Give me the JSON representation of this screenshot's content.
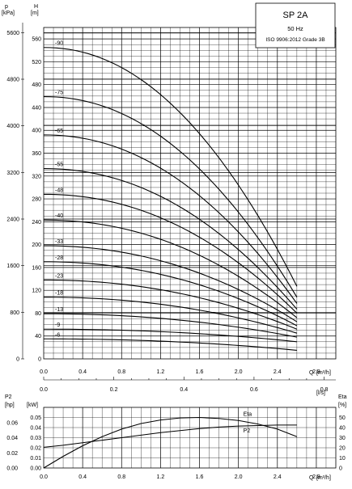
{
  "legend_box": {
    "title": "SP 2A",
    "line1": "50 Hz",
    "line2": "ISO 9906:2012 Grade 3B"
  },
  "chart_data": [
    {
      "type": "line",
      "chart": "head-curves",
      "xlabel": "Q",
      "xunit": "[m³/h]",
      "xlim": [
        0,
        3.0
      ],
      "xticks": [
        "0.0",
        "0.4",
        "0.8",
        "1.2",
        "1.6",
        "2.0",
        "2.4",
        "2.8"
      ],
      "xtick_values": [
        0.0,
        0.4,
        0.8,
        1.2,
        1.6,
        2.0,
        2.4,
        2.8
      ],
      "ylabel": "H",
      "yunit": "[m]",
      "ylim": [
        0,
        580
      ],
      "yticks": [
        "0",
        "40",
        "80",
        "120",
        "160",
        "200",
        "240",
        "280",
        "320",
        "360",
        "400",
        "440",
        "480",
        "520",
        "560"
      ],
      "ytick_values": [
        0,
        40,
        80,
        120,
        160,
        200,
        240,
        280,
        320,
        360,
        400,
        440,
        480,
        520,
        560
      ],
      "y2label": "p",
      "y2unit": "[kPa]",
      "y2ticks": [
        "0",
        "800",
        "1600",
        "2400",
        "3200",
        "4000",
        "4800",
        "5600"
      ],
      "y2tick_values": [
        0,
        800,
        1600,
        2400,
        3200,
        4000,
        4800,
        5600
      ],
      "q_end": 2.6,
      "series": [
        {
          "name": "-90",
          "h0": 545,
          "h_end": 127
        },
        {
          "name": "-75",
          "h0": 459,
          "h_end": 108
        },
        {
          "name": "-65",
          "h0": 392,
          "h_end": 97
        },
        {
          "name": "-55",
          "h0": 333,
          "h_end": 87
        },
        {
          "name": "-48",
          "h0": 288,
          "h_end": 80
        },
        {
          "name": "-40",
          "h0": 243,
          "h_end": 72
        },
        {
          "name": "-33",
          "h0": 198,
          "h_end": 65
        },
        {
          "name": "-28",
          "h0": 170,
          "h_end": 58
        },
        {
          "name": "-23",
          "h0": 138,
          "h_end": 52
        },
        {
          "name": "-18",
          "h0": 108,
          "h_end": 45
        },
        {
          "name": "-13",
          "h0": 79,
          "h_end": 38
        },
        {
          "name": "-9",
          "h0": 52,
          "h_end": 30
        },
        {
          "name": "-6",
          "h0": 35,
          "h_end": 15
        }
      ]
    },
    {
      "type": "line",
      "chart": "flow-axis-ls",
      "xunit": "[l/s]",
      "xticks": [
        "0.0",
        "0.2",
        "0.4",
        "0.6",
        "0.8"
      ],
      "xtick_values": [
        0.0,
        0.2,
        0.4,
        0.6,
        0.8
      ]
    },
    {
      "type": "line",
      "chart": "power-efficiency",
      "xlabel": "Q",
      "xunit": "[m³/h]",
      "xlim": [
        0,
        3.0
      ],
      "xticks": [
        "0.0",
        "0.4",
        "0.8",
        "1.2",
        "1.6",
        "2.0",
        "2.4",
        "2.8"
      ],
      "xtick_values": [
        0.0,
        0.4,
        0.8,
        1.2,
        1.6,
        2.0,
        2.4,
        2.8
      ],
      "ylabel": "P2",
      "yunit_left_outer": "[hp]",
      "yunit_left_inner": "[kW]",
      "hp_ticks": [
        "0.00",
        "0.02",
        "0.04",
        "0.06"
      ],
      "hp_tick_values": [
        0.0,
        0.02,
        0.04,
        0.06
      ],
      "kw_ticks": [
        "0.00",
        "0.01",
        "0.02",
        "0.03",
        "0.04",
        "0.05"
      ],
      "kw_tick_values": [
        0.0,
        0.01,
        0.02,
        0.03,
        0.04,
        0.05
      ],
      "kw_lim": [
        0,
        0.06
      ],
      "y2label": "Eta",
      "y2unit": "[%]",
      "eta_ticks": [
        "0",
        "10",
        "20",
        "30",
        "40",
        "50"
      ],
      "eta_tick_values": [
        0,
        10,
        20,
        30,
        40,
        50
      ],
      "eta_lim": [
        0,
        60
      ],
      "series": [
        {
          "name": "Eta",
          "axis": "eta",
          "x": [
            0.0,
            0.2,
            0.4,
            0.6,
            0.8,
            1.0,
            1.2,
            1.4,
            1.6,
            1.8,
            2.0,
            2.2,
            2.4,
            2.6
          ],
          "y": [
            0,
            11.5,
            22,
            31,
            38.5,
            44,
            47.5,
            49.5,
            50,
            49,
            47,
            43.5,
            38.5,
            31
          ]
        },
        {
          "name": "P2",
          "axis": "kw",
          "x": [
            0.0,
            0.2,
            0.4,
            0.6,
            0.8,
            1.0,
            1.2,
            1.4,
            1.6,
            1.8,
            2.0,
            2.2,
            2.4,
            2.6
          ],
          "y": [
            0.0205,
            0.0225,
            0.025,
            0.0275,
            0.03,
            0.0325,
            0.035,
            0.037,
            0.039,
            0.0405,
            0.0415,
            0.042,
            0.0425,
            0.0425
          ]
        }
      ]
    }
  ]
}
